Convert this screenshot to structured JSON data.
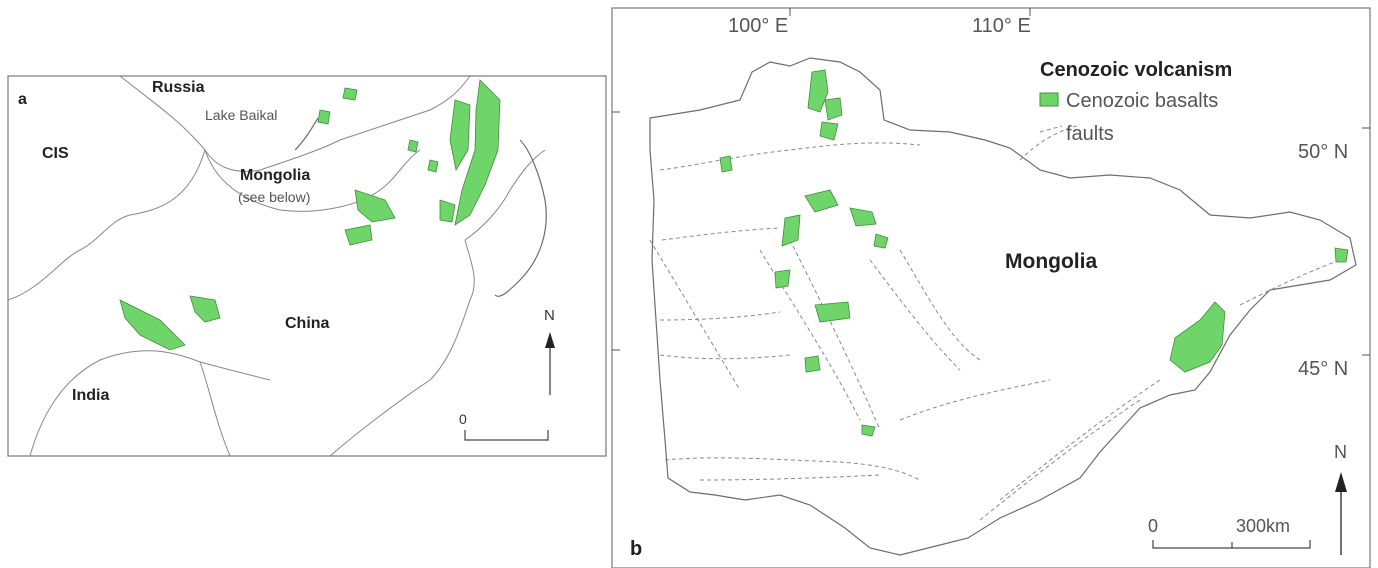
{
  "map_a": {
    "panel_label": "a",
    "places": {
      "russia": "Russia",
      "lake_baikal": "Lake Baikal",
      "cis": "CIS",
      "mongolia": "Mongolia",
      "see_below": "(see below)",
      "china": "China",
      "india": "India"
    },
    "north_label": "N",
    "scale_zero": "0"
  },
  "map_b": {
    "panel_label": "b",
    "country": "Mongolia",
    "lon_labels": [
      "100° E",
      "110° E"
    ],
    "lat_labels": [
      "50° N",
      "45° N"
    ],
    "legend": {
      "title": "Cenozoic volcanism",
      "basalts": "Cenozoic basalts",
      "faults": "faults"
    },
    "scale": {
      "zero": "0",
      "end": "300km"
    },
    "north_label": "N"
  },
  "colors": {
    "basalt_fill": "#6fd46a",
    "basalt_stroke": "#3f8f3a",
    "outline": "#6d6d6d"
  }
}
